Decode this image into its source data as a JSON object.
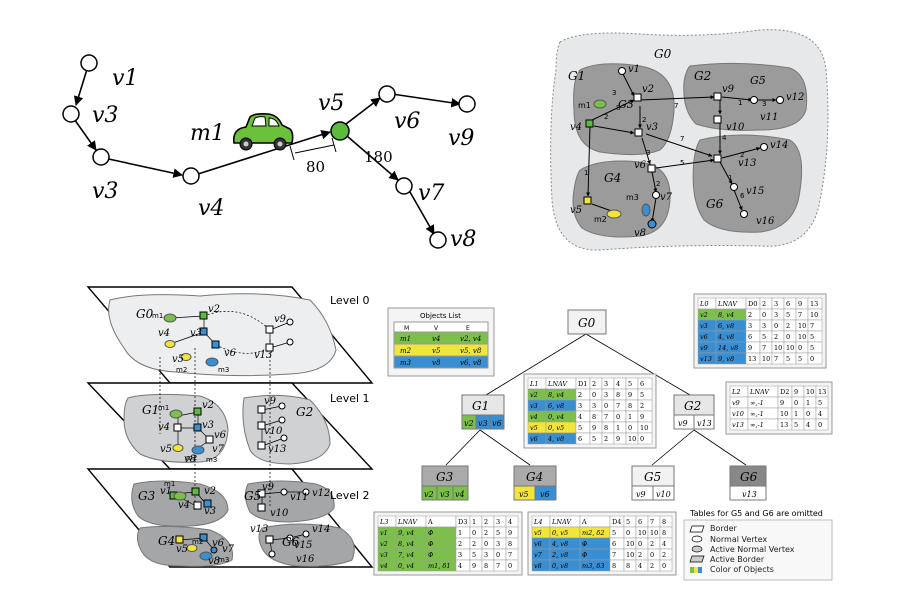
{
  "road_graph": {
    "vertices": [
      "v1",
      "v3",
      "v3",
      "v4",
      "v5",
      "v6",
      "v9",
      "v7",
      "v8"
    ],
    "object": "m1",
    "dist_a": "80",
    "dist_b": "180"
  },
  "hier_graph": {
    "g0": "G0",
    "subgraphs": [
      "G1",
      "G2",
      "G3",
      "G4",
      "G5",
      "G6"
    ],
    "objects": [
      "m1",
      "m2",
      "m3"
    ],
    "vertices": [
      "v1",
      "v2",
      "v3",
      "v4",
      "v5",
      "v6",
      "v7",
      "v8",
      "v9",
      "v10",
      "v11",
      "v12",
      "v13",
      "v14",
      "v15",
      "v16"
    ],
    "weights": [
      "3",
      "2",
      "7",
      "8",
      "2",
      "7",
      "1",
      "3",
      "4",
      "2",
      "7",
      "5",
      "1",
      "6",
      "2",
      "2",
      "3",
      "2",
      "8",
      "2",
      "2",
      "2",
      "3",
      "2"
    ]
  },
  "levels": {
    "labels": [
      "Level 0",
      "Level 1",
      "Level 2"
    ],
    "level0": {
      "g": "G0",
      "v": [
        "v2",
        "v3",
        "v4",
        "v5",
        "v6",
        "v9",
        "v13"
      ],
      "m": [
        "m1",
        "m2",
        "m3"
      ]
    },
    "level1": {
      "g": [
        "G1",
        "G2"
      ],
      "v": [
        "v2",
        "v3",
        "v4",
        "v5",
        "v6",
        "v7",
        "v8",
        "v9",
        "v10",
        "v13"
      ],
      "m": [
        "m1",
        "m2",
        "m3"
      ]
    },
    "level2": {
      "g": [
        "G3",
        "G4",
        "G5",
        "G6"
      ],
      "v": [
        "v1",
        "v2",
        "v3",
        "v4",
        "v5",
        "v6",
        "v7",
        "v8",
        "v9",
        "v10",
        "v11",
        "v12",
        "v13",
        "v14",
        "v15",
        "v16"
      ],
      "m": [
        "m1",
        "m2",
        "m3"
      ]
    }
  },
  "objects_list": {
    "title": "Objects List",
    "headers": [
      "M",
      "V",
      "E"
    ],
    "rows": [
      [
        "m1",
        "v4",
        "v2, v4"
      ],
      [
        "m2",
        "v5",
        "v5, v8"
      ],
      [
        "m3",
        "v8",
        "v6, v8"
      ]
    ]
  },
  "tree": {
    "root": {
      "label": "G0"
    },
    "g1": {
      "label": "G1",
      "cells": [
        "v2",
        "v3",
        "v6"
      ]
    },
    "g2": {
      "label": "G2",
      "cells": [
        "v9",
        "v13"
      ]
    },
    "g3": {
      "label": "G3",
      "cells": [
        "v2",
        "v3",
        "v4"
      ]
    },
    "g4": {
      "label": "G4",
      "cells": [
        "v5",
        "v6"
      ]
    },
    "g5": {
      "label": "G5",
      "cells": [
        "v9",
        "v10"
      ]
    },
    "g6": {
      "label": "G6",
      "cells": [
        "v13"
      ]
    }
  },
  "table_g0": {
    "h1": "L0",
    "h2": "LNAV",
    "h3": "D0",
    "cols": [
      "2",
      "3",
      "6",
      "9",
      "13"
    ],
    "rows": [
      [
        "v2",
        "8, v4",
        "2",
        "0",
        "3",
        "5",
        "7",
        "10"
      ],
      [
        "v3",
        "6, v8",
        "3",
        "3",
        "0",
        "2",
        "10",
        "7"
      ],
      [
        "v6",
        "4, v8",
        "6",
        "5",
        "2",
        "0",
        "10",
        "5"
      ],
      [
        "v9",
        "14, v8",
        "9",
        "7",
        "10",
        "10",
        "0",
        "5"
      ],
      [
        "v13",
        "9, v8",
        "13",
        "10",
        "7",
        "5",
        "5",
        "0"
      ]
    ]
  },
  "table_g2": {
    "h1": "L2",
    "h2": "LNAV",
    "h3": "D2",
    "cols": [
      "9",
      "10",
      "13"
    ],
    "rows": [
      [
        "v9",
        "∞,-1",
        "9",
        "0",
        "1",
        "5"
      ],
      [
        "v10",
        "∞,-1",
        "10",
        "1",
        "0",
        "4"
      ],
      [
        "v13",
        "∞,-1",
        "13",
        "5",
        "4",
        "0"
      ]
    ]
  },
  "table_g1": {
    "h1": "L1",
    "h2": "LNAV",
    "h3": "D1",
    "cols": [
      "2",
      "3",
      "4",
      "5",
      "6"
    ],
    "rows": [
      [
        "v2",
        "8, v4",
        "2",
        "0",
        "3",
        "8",
        "9",
        "5"
      ],
      [
        "v3",
        "6, v8",
        "3",
        "3",
        "0",
        "7",
        "8",
        "2"
      ],
      [
        "v4",
        "0, v4",
        "4",
        "8",
        "7",
        "0",
        "1",
        "9"
      ],
      [
        "v5",
        "0, v5",
        "5",
        "9",
        "8",
        "1",
        "0",
        "10"
      ],
      [
        "v6",
        "4, v8",
        "6",
        "5",
        "2",
        "9",
        "10",
        "0"
      ]
    ]
  },
  "table_g3": {
    "h1": "L3",
    "h2": "LNAV",
    "h3": "A",
    "h4": "D3",
    "cols": [
      "1",
      "2",
      "3",
      "4"
    ],
    "rows": [
      [
        "v1",
        "9, v4",
        "Φ",
        "1",
        "0",
        "2",
        "5",
        "9"
      ],
      [
        "v2",
        "8, v4",
        "Φ",
        "2",
        "2",
        "0",
        "3",
        "8"
      ],
      [
        "v3",
        "7, v4",
        "Φ",
        "3",
        "5",
        "3",
        "0",
        "7"
      ],
      [
        "v4",
        "0, v4",
        "m1, δ1",
        "4",
        "9",
        "8",
        "7",
        "0"
      ]
    ]
  },
  "table_g4": {
    "h1": "L4",
    "h2": "LNAV",
    "h3": "A",
    "h4": "D4",
    "cols": [
      "5",
      "6",
      "7",
      "8"
    ],
    "rows": [
      [
        "v5",
        "0, v5",
        "m2, δ2",
        "5",
        "0",
        "10",
        "10",
        "8"
      ],
      [
        "v6",
        "4, v8",
        "Φ",
        "6",
        "10",
        "0",
        "2",
        "4"
      ],
      [
        "v7",
        "2, v8",
        "Φ",
        "7",
        "10",
        "2",
        "0",
        "2"
      ],
      [
        "v8",
        "0, v8",
        "m3, δ3",
        "8",
        "8",
        "4",
        "2",
        "0"
      ]
    ]
  },
  "legend": {
    "title": "Tables for G5 and G6 are omitted",
    "items": [
      "Border",
      "Normal Vertex",
      "Active Normal Vertex",
      "Active Border",
      "Color of Objects"
    ]
  },
  "colors": {
    "green": "#7cc04b",
    "blue": "#3a8fd3",
    "yellow": "#f1e43a",
    "gray": "#bdbdbd",
    "darkgray": "#8a8a8a"
  }
}
